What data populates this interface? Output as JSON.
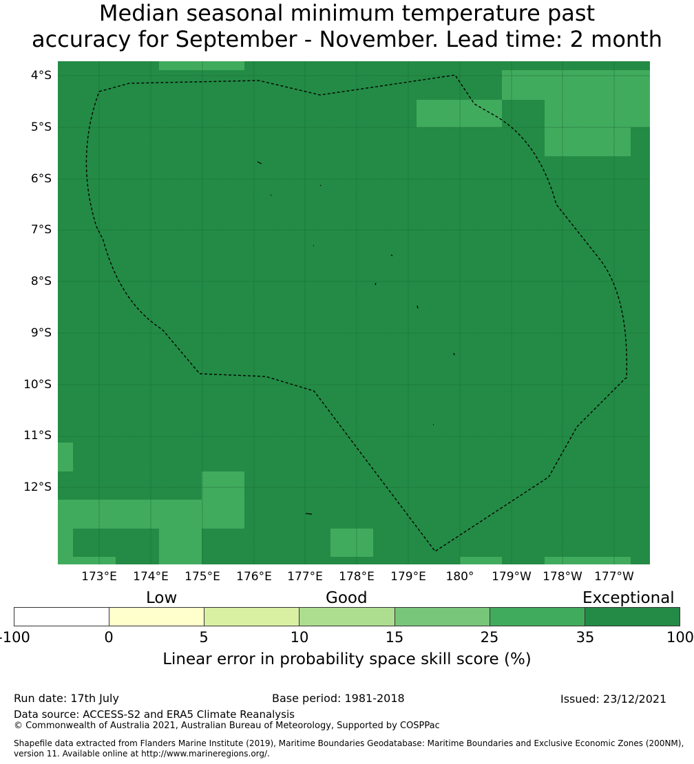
{
  "title": {
    "line1": "Median seasonal minimum temperature past",
    "line2": "accuracy for September - November. Lead time: 2 month"
  },
  "map": {
    "background_color": "#238b45",
    "lat_labels": [
      "4°S",
      "5°S",
      "6°S",
      "7°S",
      "8°S",
      "9°S",
      "10°S",
      "11°S",
      "12°S"
    ],
    "lon_labels": [
      "173°E",
      "174°E",
      "175°E",
      "176°E",
      "177°E",
      "178°E",
      "179°E",
      "180°",
      "179°W",
      "178°W",
      "177°W"
    ],
    "boundary_style": "black dashed line (EEZ)"
  },
  "legend": {
    "categories": [
      "Low",
      "Good",
      "Exceptional"
    ],
    "tick_labels": [
      "-100",
      "0",
      "5",
      "10",
      "15",
      "25",
      "35",
      "100"
    ],
    "colors": [
      "#ffffff",
      "#ffffcc",
      "#d9f0a3",
      "#addd8e",
      "#78c679",
      "#41ab5d",
      "#238b45"
    ],
    "label": "Linear error in probability space skill score (%)"
  },
  "footer": {
    "run_date": "Run date: 17th July",
    "base_period": "Base period: 1981-2018",
    "issued": "Issued: 23/12/2021",
    "data_source": "Data source: ACCESS-S2 and ERA5 Climate Reanalysis",
    "copyright": "© Commonwealth of Australia 2021, Australian Bureau of Meteorology, Supported by COSPPac",
    "shapefile_line1": "Shapefile data extracted from Flanders Marine Institute (2019), Maritime Boundaries Geodatabase: Maritime Boundaries and Exclusive Economic Zones (200NM),",
    "shapefile_line2": "version 11. Available online at http://www.marineregions.org/."
  }
}
